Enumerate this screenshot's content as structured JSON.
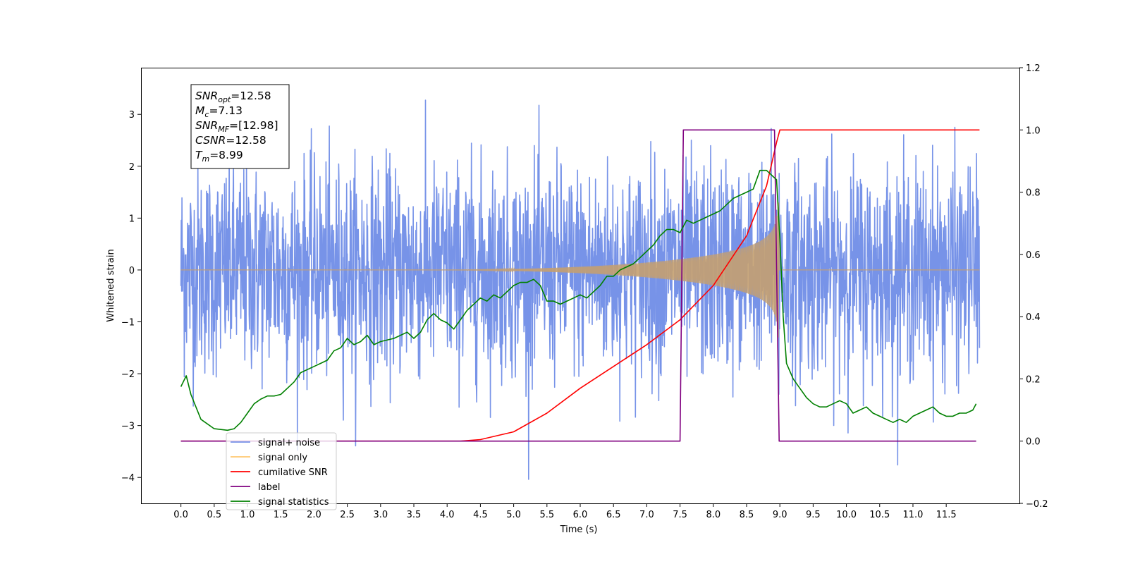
{
  "chart_data": {
    "type": "line",
    "xlabel": "Time (s)",
    "ylabel": "Whitened strain",
    "x_ticks": [
      "0.0",
      "0.5",
      "1.0",
      "1.5",
      "2.0",
      "2.5",
      "3.0",
      "3.5",
      "4.0",
      "4.5",
      "5.0",
      "5.5",
      "6.0",
      "6.5",
      "7.0",
      "7.5",
      "8.0",
      "8.5",
      "9.0",
      "9.5",
      "10.0",
      "10.5",
      "11.0",
      "11.5"
    ],
    "xlim": [
      -0.6,
      12.6
    ],
    "ylim_left": [
      -4.5,
      3.9
    ],
    "ylim_right": [
      -0.2,
      1.2
    ],
    "y_ticks_left": [
      "−4",
      "−3",
      "−2",
      "−1",
      "0",
      "1",
      "2",
      "3"
    ],
    "y_ticks_right": [
      "−0.2",
      "0.0",
      "0.2",
      "0.4",
      "0.6",
      "0.8",
      "1.0",
      "1.2"
    ],
    "annotation": {
      "lines": [
        {
          "sym": "SNR",
          "sub": "opt",
          "val": "=12.58"
        },
        {
          "sym": "M",
          "sub": "c",
          "val": "=7.13"
        },
        {
          "sym": "SNR",
          "sub": "MF",
          "val": "=[12.98]"
        },
        {
          "sym": "CSNR",
          "sub": "",
          "val": "=12.58"
        },
        {
          "sym": "T",
          "sub": "m",
          "val": "=8.99"
        }
      ]
    },
    "legend": {
      "placement": "lower-left",
      "entries": [
        {
          "label": "signal+ noise",
          "color": "#7793e8"
        },
        {
          "label": "signal only",
          "color": "#ffc870"
        },
        {
          "label": "cumilative SNR",
          "color": "#ff0000"
        },
        {
          "label": "label",
          "color": "#800080"
        },
        {
          "label": "signal statistics",
          "color": "#008000"
        }
      ]
    },
    "series": [
      {
        "name": "signal+ noise",
        "axis": "left",
        "color": "#7793e8",
        "kind": "noise",
        "t_start": 0.0,
        "t_end": 12.0,
        "amplitude_sigma": 1.0
      },
      {
        "name": "signal only",
        "axis": "left",
        "color": "#c4a070",
        "kind": "chirp",
        "t_start": 0.0,
        "t_end": 9.0,
        "peak_time": 8.99,
        "peak_amplitude": 1.3
      },
      {
        "name": "cumilative SNR",
        "axis": "right",
        "x": [
          0.0,
          4.2,
          4.5,
          5.0,
          5.5,
          6.0,
          6.5,
          7.0,
          7.5,
          8.0,
          8.5,
          8.8,
          8.95,
          9.0,
          12.0
        ],
        "y": [
          0.0,
          0.0,
          0.005,
          0.03,
          0.09,
          0.17,
          0.24,
          0.31,
          0.39,
          0.5,
          0.66,
          0.82,
          0.96,
          1.0,
          1.0
        ]
      },
      {
        "name": "label",
        "axis": "right",
        "x": [
          0.0,
          7.5,
          7.55,
          8.92,
          8.99,
          11.95
        ],
        "y": [
          0.0,
          0.0,
          1.0,
          1.0,
          0.0,
          0.0
        ]
      },
      {
        "name": "signal statistics",
        "axis": "right",
        "x": [
          0.0,
          0.08,
          0.15,
          0.3,
          0.5,
          0.7,
          0.8,
          0.9,
          1.0,
          1.1,
          1.2,
          1.3,
          1.4,
          1.5,
          1.6,
          1.7,
          1.8,
          1.9,
          2.0,
          2.1,
          2.2,
          2.3,
          2.4,
          2.5,
          2.6,
          2.7,
          2.8,
          2.9,
          3.0,
          3.2,
          3.4,
          3.5,
          3.6,
          3.7,
          3.8,
          3.9,
          4.0,
          4.1,
          4.2,
          4.3,
          4.5,
          4.6,
          4.7,
          4.8,
          4.9,
          5.0,
          5.1,
          5.2,
          5.3,
          5.4,
          5.5,
          5.6,
          5.7,
          5.8,
          5.9,
          6.0,
          6.1,
          6.2,
          6.3,
          6.4,
          6.5,
          6.6,
          6.7,
          6.8,
          6.9,
          7.0,
          7.1,
          7.2,
          7.3,
          7.4,
          7.5,
          7.6,
          7.7,
          7.8,
          7.9,
          8.0,
          8.1,
          8.2,
          8.3,
          8.4,
          8.5,
          8.6,
          8.7,
          8.8,
          8.85,
          8.9,
          8.95,
          9.0,
          9.05,
          9.1,
          9.2,
          9.3,
          9.4,
          9.5,
          9.6,
          9.7,
          9.8,
          9.9,
          10.0,
          10.1,
          10.2,
          10.3,
          10.4,
          10.5,
          10.6,
          10.7,
          10.8,
          10.9,
          11.0,
          11.1,
          11.2,
          11.3,
          11.4,
          11.5,
          11.6,
          11.7,
          11.8,
          11.9,
          11.95
        ],
        "y": [
          0.175,
          0.21,
          0.15,
          0.07,
          0.04,
          0.035,
          0.04,
          0.06,
          0.09,
          0.12,
          0.135,
          0.145,
          0.145,
          0.15,
          0.17,
          0.19,
          0.22,
          0.23,
          0.24,
          0.25,
          0.26,
          0.29,
          0.3,
          0.33,
          0.31,
          0.32,
          0.34,
          0.31,
          0.32,
          0.33,
          0.35,
          0.33,
          0.35,
          0.39,
          0.41,
          0.39,
          0.38,
          0.36,
          0.39,
          0.42,
          0.46,
          0.45,
          0.47,
          0.46,
          0.48,
          0.5,
          0.51,
          0.51,
          0.52,
          0.5,
          0.45,
          0.45,
          0.44,
          0.45,
          0.46,
          0.47,
          0.46,
          0.48,
          0.5,
          0.53,
          0.53,
          0.55,
          0.56,
          0.57,
          0.59,
          0.61,
          0.63,
          0.66,
          0.68,
          0.68,
          0.67,
          0.71,
          0.7,
          0.71,
          0.72,
          0.73,
          0.74,
          0.76,
          0.78,
          0.79,
          0.8,
          0.81,
          0.87,
          0.87,
          0.86,
          0.85,
          0.84,
          0.65,
          0.4,
          0.25,
          0.2,
          0.17,
          0.14,
          0.12,
          0.11,
          0.11,
          0.12,
          0.13,
          0.12,
          0.09,
          0.1,
          0.11,
          0.09,
          0.08,
          0.07,
          0.06,
          0.07,
          0.06,
          0.08,
          0.09,
          0.1,
          0.11,
          0.09,
          0.08,
          0.08,
          0.09,
          0.09,
          0.1,
          0.12
        ]
      }
    ]
  }
}
